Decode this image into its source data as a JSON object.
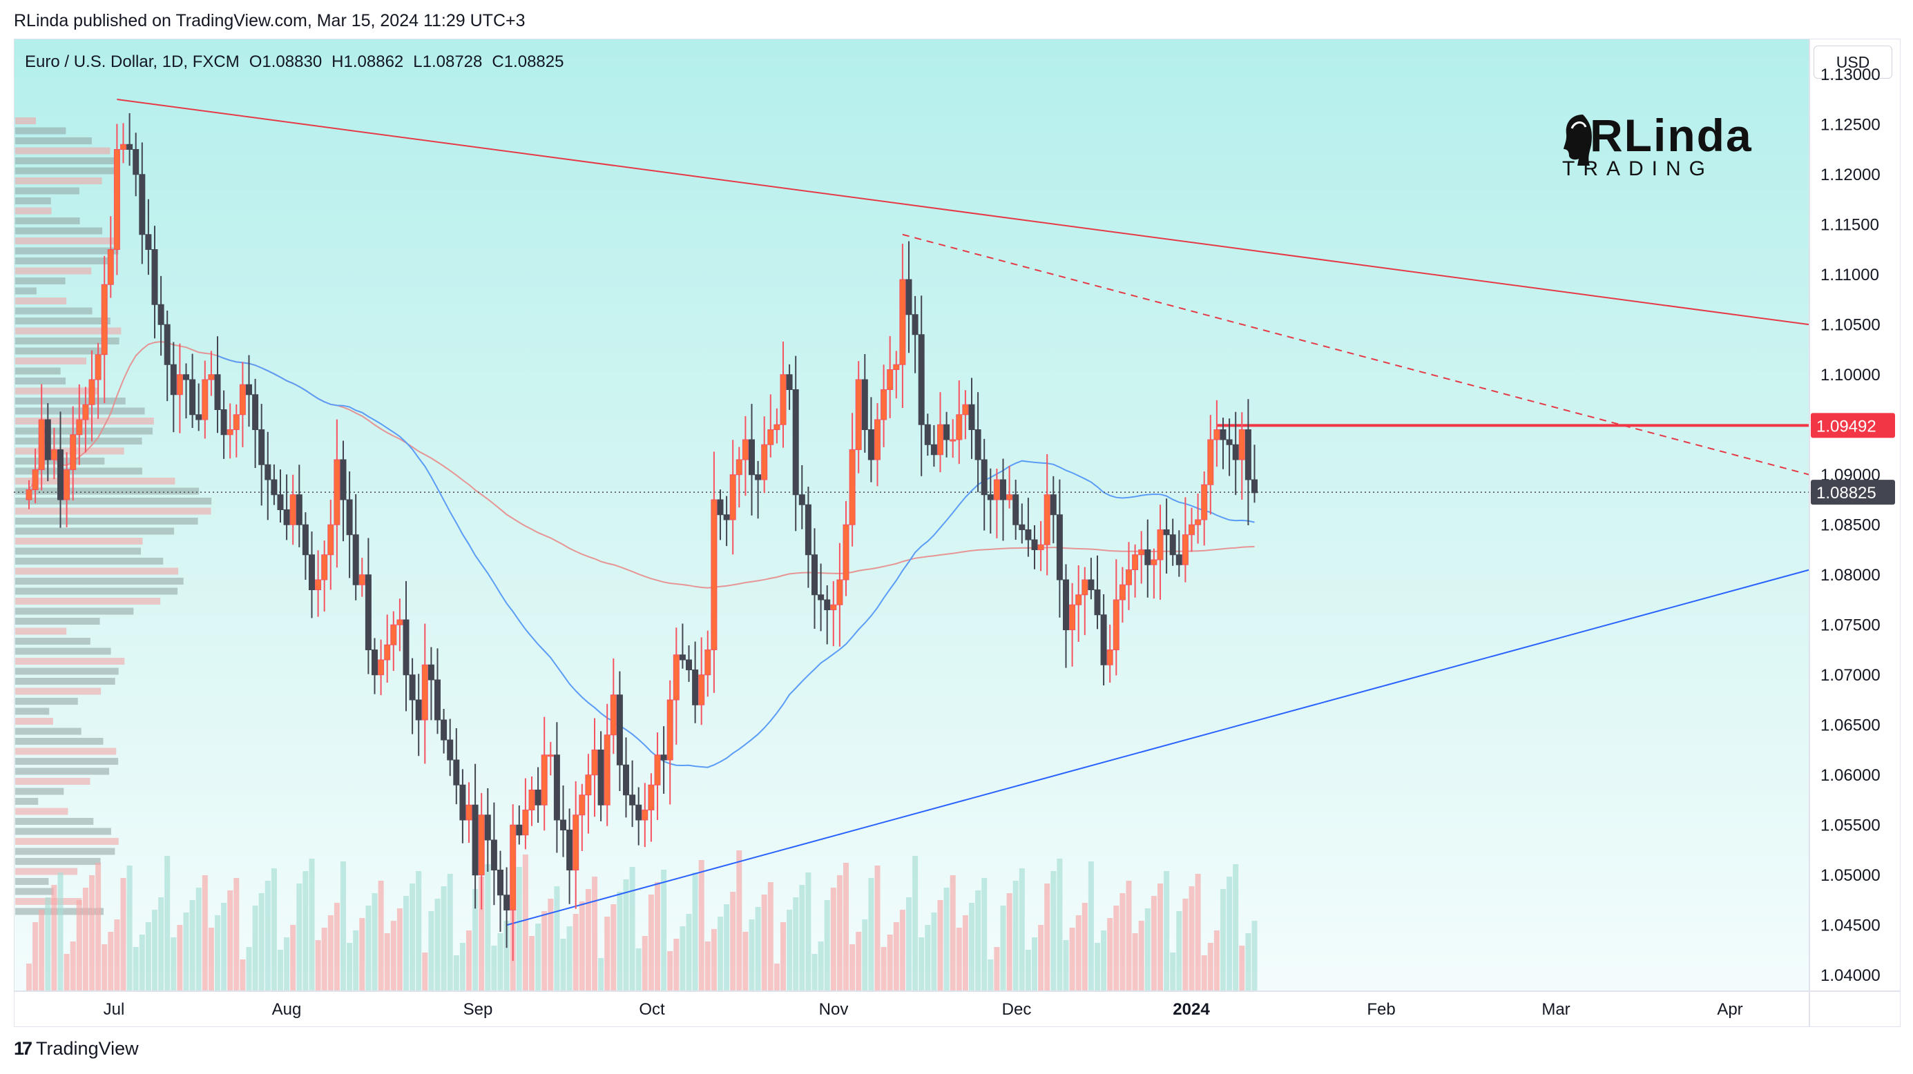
{
  "header": {
    "published_by": "RLinda published on TradingView.com, Mar 15, 2024 11:29 UTC+3"
  },
  "symbol": {
    "name": "Euro / U.S. Dollar, 1D, FXCM",
    "open": "O1.08830",
    "high": "H1.08862",
    "low": "L1.08728",
    "close": "C1.08825"
  },
  "currency_button": "USD",
  "brand": {
    "line1": "RLinda",
    "line2": "TRADING"
  },
  "footer": {
    "platform": "TradingView"
  },
  "colors": {
    "up": "#f7525f",
    "up_body": "#ff6d3a",
    "down": "#434651",
    "ma_fast": "#5b9cf6",
    "ma_slow": "#e88a8a",
    "resistance": "#e63946",
    "support": "#2962ff",
    "last_price_tag": "#434651",
    "level_tag": "#f23645"
  },
  "chart_data": {
    "type": "candlestick",
    "title": "Euro / U.S. Dollar, 1D, FXCM",
    "x_tick_labels": [
      "Jul",
      "Aug",
      "Sep",
      "Oct",
      "Nov",
      "Dec",
      "2024",
      "Feb",
      "Mar",
      "Apr"
    ],
    "y_tick_labels": [
      "1.13000",
      "1.12500",
      "1.12000",
      "1.11500",
      "1.11000",
      "1.10500",
      "1.10000",
      "1.09500",
      "1.09000",
      "1.08500",
      "1.08000",
      "1.07500",
      "1.07000",
      "1.06500",
      "1.06000",
      "1.05500",
      "1.05000",
      "1.04500",
      "1.04000"
    ],
    "ylim": [
      1.0395,
      1.1315
    ],
    "closes_approx": [
      1.0885,
      1.0905,
      1.0955,
      1.0915,
      1.0925,
      1.0875,
      1.0905,
      1.094,
      1.0955,
      1.097,
      1.0995,
      1.102,
      1.109,
      1.1125,
      1.1225,
      1.123,
      1.1225,
      1.12,
      1.114,
      1.1125,
      1.107,
      1.105,
      1.101,
      1.098,
      1.1,
      1.0995,
      1.096,
      1.0955,
      1.0995,
      1.1,
      1.0965,
      1.094,
      1.0945,
      1.096,
      1.099,
      1.098,
      1.0945,
      1.091,
      1.0895,
      1.088,
      1.0865,
      1.085,
      1.088,
      1.085,
      1.082,
      1.0785,
      1.0795,
      1.082,
      1.085,
      1.0915,
      1.0875,
      1.084,
      1.079,
      1.08,
      1.0725,
      1.07,
      1.0715,
      1.073,
      1.075,
      1.0755,
      1.07,
      1.0675,
      1.0655,
      1.071,
      1.0695,
      1.0655,
      1.0635,
      1.0615,
      1.059,
      1.0555,
      1.057,
      1.05,
      1.056,
      1.0535,
      1.0505,
      1.048,
      1.0465,
      1.055,
      1.054,
      1.0565,
      1.0585,
      1.057,
      1.062,
      1.062,
      1.0555,
      1.0545,
      1.0505,
      1.056,
      1.058,
      1.06,
      1.0625,
      1.057,
      1.064,
      1.068,
      1.061,
      1.058,
      1.057,
      1.0555,
      1.0565,
      1.059,
      1.062,
      1.0615,
      1.0675,
      1.072,
      1.0715,
      1.0705,
      1.067,
      1.07,
      1.0725,
      1.0875,
      1.086,
      1.0855,
      1.09,
      1.0915,
      1.0935,
      1.09,
      1.0895,
      1.093,
      1.0945,
      1.095,
      1.1,
      1.0985,
      1.088,
      1.087,
      1.082,
      1.078,
      1.0775,
      1.0765,
      1.077,
      1.0795,
      1.085,
      1.0925,
      1.0995,
      1.0945,
      1.0915,
      1.0955,
      1.0985,
      1.1005,
      1.101,
      1.1095,
      1.106,
      1.104,
      1.095,
      1.093,
      1.092,
      1.095,
      1.0935,
      1.0935,
      1.096,
      1.097,
      1.0945,
      1.0915,
      1.088,
      1.0875,
      1.0895,
      1.0875,
      1.088,
      1.085,
      1.0845,
      1.0835,
      1.0825,
      1.083,
      1.088,
      1.086,
      1.0795,
      1.0745,
      1.077,
      1.078,
      1.0795,
      1.0785,
      1.076,
      1.071,
      1.0725,
      1.0775,
      1.079,
      1.0805,
      1.082,
      1.0825,
      1.081,
      1.0815,
      1.0845,
      1.084,
      1.082,
      1.081,
      1.084,
      1.085,
      1.0855,
      1.089,
      1.0935,
      1.0945,
      1.0935,
      1.093,
      1.0915,
      1.0945,
      1.0895,
      1.0882
    ],
    "series": [
      {
        "name": "MA fast",
        "color": "#5b9cf6"
      },
      {
        "name": "MA slow",
        "color": "#e88a8a"
      }
    ],
    "annotations": {
      "last_price": "1.08825",
      "horizontal_level": "1.09492",
      "resistance_line": {
        "from": [
          0,
          1.1275
        ],
        "to": [
          215,
          1.105
        ]
      },
      "dashed_line": {
        "from": [
          0,
          1.114
        ],
        "to": [
          0,
          1.09
        ]
      },
      "support_line": {
        "from": [
          0,
          1.045
        ],
        "to": [
          0,
          1.0805
        ]
      }
    },
    "volume_profile": true,
    "grid": false,
    "legend": "none"
  }
}
